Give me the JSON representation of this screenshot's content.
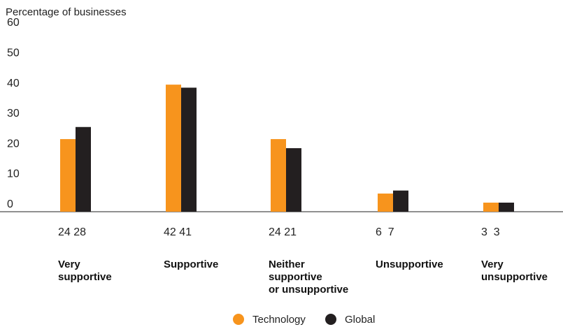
{
  "chart_data": {
    "type": "bar",
    "title": "",
    "subtitle": "Percentage of businesses",
    "xlabel": "",
    "ylabel": "",
    "ylim": [
      0,
      60
    ],
    "yticks": [
      0,
      10,
      20,
      30,
      40,
      50,
      60
    ],
    "categories": [
      [
        "Very",
        "supportive"
      ],
      [
        "Supportive"
      ],
      [
        "Neither",
        "supportive",
        "or unsupportive"
      ],
      [
        "Unsupportive"
      ],
      [
        "Very",
        "unsupportive"
      ]
    ],
    "series": [
      {
        "name": "Technology",
        "color": "#F7941D",
        "values": [
          24,
          42,
          24,
          6,
          3
        ]
      },
      {
        "name": "Global",
        "color": "#231F20",
        "values": [
          28,
          41,
          21,
          7,
          3
        ]
      }
    ],
    "value_labels": [
      "24 28",
      "42 41",
      "24 21",
      "6  7",
      "3  3"
    ],
    "grid": false,
    "legend": "bottom-center"
  }
}
